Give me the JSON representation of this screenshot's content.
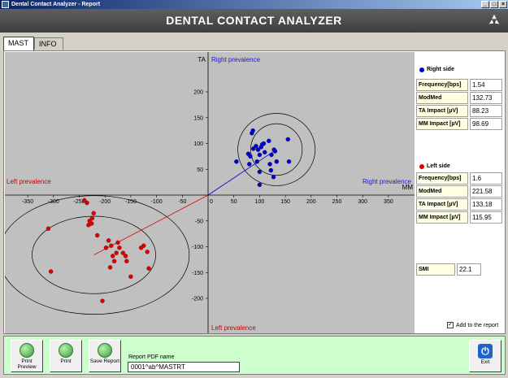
{
  "window": {
    "title": "Dental Contact Analyzer - Report"
  },
  "header": {
    "title": "DENTAL CONTACT ANALYZER"
  },
  "tabs": [
    {
      "label": "MAST"
    },
    {
      "label": "INFO"
    }
  ],
  "chart_data": {
    "type": "scatter",
    "title": "",
    "xlabel": "MM",
    "ylabel": "TA",
    "xlim": [
      -390,
      400
    ],
    "ylim": [
      -265,
      290
    ],
    "xticks": [
      -350,
      -300,
      -250,
      -200,
      -150,
      -100,
      -50,
      50,
      100,
      150,
      200,
      250,
      300,
      350
    ],
    "yticks": [
      -200,
      -150,
      -100,
      -50,
      50,
      100,
      150,
      200
    ],
    "annotations": {
      "top": "Right prevalence",
      "right": "Right prevalence",
      "left": "Left prevalence",
      "bottom": "Left prevalence"
    },
    "series": [
      {
        "name": "Right side",
        "color": "#0000cc",
        "centroid": [
          132.73,
          88.23
        ],
        "ellipses": [
          {
            "rx": 50,
            "ry": 50
          },
          {
            "rx": 75,
            "ry": 70
          }
        ],
        "points": [
          [
            55,
            65
          ],
          [
            78,
            80
          ],
          [
            80,
            60
          ],
          [
            82,
            75
          ],
          [
            85,
            120
          ],
          [
            87,
            125
          ],
          [
            88,
            90
          ],
          [
            93,
            95
          ],
          [
            95,
            65
          ],
          [
            97,
            88
          ],
          [
            100,
            78
          ],
          [
            100,
            45
          ],
          [
            100,
            20
          ],
          [
            103,
            93
          ],
          [
            105,
            98
          ],
          [
            108,
            100
          ],
          [
            110,
            83
          ],
          [
            118,
            105
          ],
          [
            120,
            60
          ],
          [
            122,
            48
          ],
          [
            123,
            78
          ],
          [
            127,
            35
          ],
          [
            128,
            88
          ],
          [
            130,
            85
          ],
          [
            133,
            65
          ],
          [
            155,
            108
          ],
          [
            157,
            65
          ]
        ]
      },
      {
        "name": "Left side",
        "color": "#dd0000",
        "centroid": [
          -221.58,
          -115.95
        ],
        "ellipses": [
          {
            "rx": 120,
            "ry": 75
          },
          {
            "rx": 185,
            "ry": 115
          }
        ],
        "points": [
          [
            -310,
            -65
          ],
          [
            -305,
            -148
          ],
          [
            -240,
            -10
          ],
          [
            -235,
            -15
          ],
          [
            -232,
            -58
          ],
          [
            -230,
            -50
          ],
          [
            -226,
            -55
          ],
          [
            -225,
            -45
          ],
          [
            -222,
            -35
          ],
          [
            -215,
            -78
          ],
          [
            -205,
            -205
          ],
          [
            -198,
            -102
          ],
          [
            -193,
            -88
          ],
          [
            -190,
            -140
          ],
          [
            -188,
            -98
          ],
          [
            -185,
            -118
          ],
          [
            -182,
            -128
          ],
          [
            -178,
            -112
          ],
          [
            -175,
            -92
          ],
          [
            -172,
            -102
          ],
          [
            -165,
            -112
          ],
          [
            -160,
            -118
          ],
          [
            -158,
            -128
          ],
          [
            -150,
            -158
          ],
          [
            -130,
            -102
          ],
          [
            -125,
            -98
          ],
          [
            -118,
            -110
          ],
          [
            -115,
            -142
          ]
        ]
      }
    ]
  },
  "right_side": {
    "title": "Right side",
    "frequency_label": "Frequency[bps]",
    "frequency": "1.54",
    "modmed_label": "ModMed",
    "modmed": "132.73",
    "ta_impact_label": "TA Impact [µV]",
    "ta_impact": "88.23",
    "mm_impact_label": "MM Impact [µV]",
    "mm_impact": "98.69"
  },
  "left_side": {
    "title": "Left side",
    "frequency_label": "Frequency[bps]",
    "frequency": "1.6",
    "modmed_label": "ModMed",
    "modmed": "221.58",
    "ta_impact_label": "TA Impact [µV]",
    "ta_impact": "133.18",
    "mm_impact_label": "MM Impact [µV]",
    "mm_impact": "115.95"
  },
  "smi": {
    "label": "SMI",
    "value": "22.1"
  },
  "add_to_report": {
    "label": "Add to the report",
    "checked": true
  },
  "footer": {
    "print_preview": "Print Preview",
    "print": "Print",
    "save_report": "Save Report",
    "pdf_label": "Report PDF name",
    "pdf_name": "0001^ab^MASTRT",
    "exit": "Exit"
  }
}
